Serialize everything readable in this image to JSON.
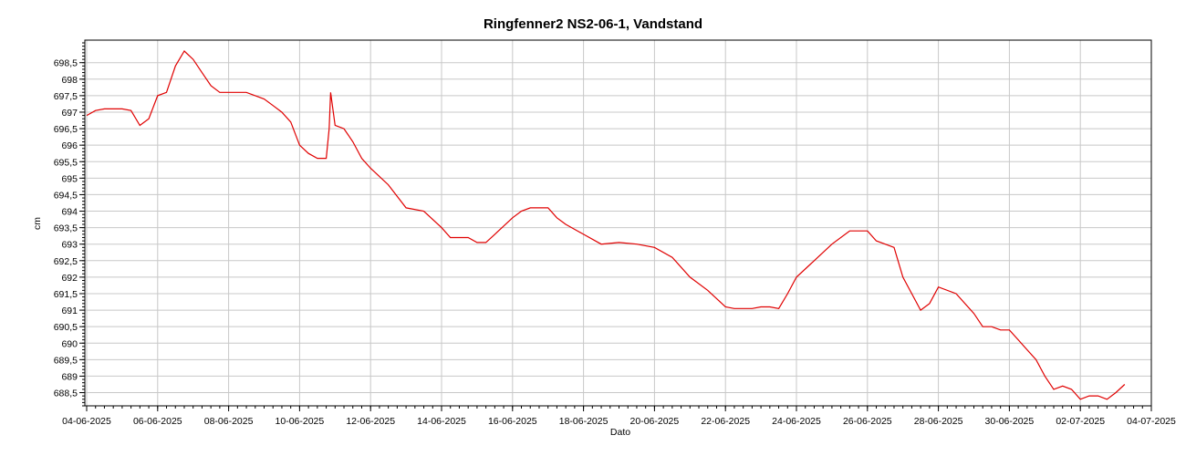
{
  "chart_data": {
    "type": "line",
    "title": "Ringfenner2 NS2-06-1, Vandstand",
    "xlabel": "Dato",
    "ylabel": "cm",
    "x_ticks": [
      "04-06-2025",
      "06-06-2025",
      "08-06-2025",
      "10-06-2025",
      "12-06-2025",
      "14-06-2025",
      "16-06-2025",
      "18-06-2025",
      "20-06-2025",
      "22-06-2025",
      "24-06-2025",
      "26-06-2025",
      "28-06-2025",
      "30-06-2025",
      "02-07-2025",
      "04-07-2025"
    ],
    "y_ticks": [
      "688,5",
      "689",
      "689,5",
      "690",
      "690,5",
      "691",
      "691,5",
      "692",
      "692,5",
      "693",
      "693,5",
      "694",
      "694,5",
      "695",
      "695,5",
      "696",
      "696,5",
      "697",
      "697,5",
      "698",
      "698,5"
    ],
    "xlim": [
      "2025-06-04",
      "2025-07-04"
    ],
    "ylim": [
      688.1,
      699.1
    ],
    "grid": true,
    "line_color": "#e00000",
    "series": [
      {
        "x": [
          "2025-06-04 00:00",
          "2025-06-04 06:00",
          "2025-06-04 12:00",
          "2025-06-04 18:00",
          "2025-06-05 00:00",
          "2025-06-05 06:00",
          "2025-06-05 12:00",
          "2025-06-05 18:00",
          "2025-06-06 00:00",
          "2025-06-06 06:00",
          "2025-06-06 12:00",
          "2025-06-06 18:00",
          "2025-06-07 00:00",
          "2025-06-07 06:00",
          "2025-06-07 12:00",
          "2025-06-07 18:00",
          "2025-06-08 00:00",
          "2025-06-08 12:00",
          "2025-06-09 00:00",
          "2025-06-09 06:00",
          "2025-06-09 12:00",
          "2025-06-09 18:00",
          "2025-06-10 00:00",
          "2025-06-10 06:00",
          "2025-06-10 12:00",
          "2025-06-10 18:00",
          "2025-06-10 20:00",
          "2025-06-10 21:00",
          "2025-06-11 00:00",
          "2025-06-11 06:00",
          "2025-06-11 12:00",
          "2025-06-11 18:00",
          "2025-06-12 00:00",
          "2025-06-12 12:00",
          "2025-06-13 00:00",
          "2025-06-13 12:00",
          "2025-06-14 00:00",
          "2025-06-14 06:00",
          "2025-06-14 12:00",
          "2025-06-14 18:00",
          "2025-06-15 00:00",
          "2025-06-15 06:00",
          "2025-06-15 12:00",
          "2025-06-16 00:00",
          "2025-06-16 06:00",
          "2025-06-16 12:00",
          "2025-06-16 18:00",
          "2025-06-17 00:00",
          "2025-06-17 06:00",
          "2025-06-17 12:00",
          "2025-06-18 00:00",
          "2025-06-18 12:00",
          "2025-06-19 00:00",
          "2025-06-19 12:00",
          "2025-06-20 00:00",
          "2025-06-20 12:00",
          "2025-06-21 00:00",
          "2025-06-21 12:00",
          "2025-06-22 00:00",
          "2025-06-22 06:00",
          "2025-06-22 12:00",
          "2025-06-22 18:00",
          "2025-06-23 00:00",
          "2025-06-23 06:00",
          "2025-06-23 12:00",
          "2025-06-23 18:00",
          "2025-06-24 00:00",
          "2025-06-24 12:00",
          "2025-06-25 00:00",
          "2025-06-25 12:00",
          "2025-06-26 00:00",
          "2025-06-26 06:00",
          "2025-06-26 12:00",
          "2025-06-26 18:00",
          "2025-06-27 00:00",
          "2025-06-27 06:00",
          "2025-06-27 12:00",
          "2025-06-27 18:00",
          "2025-06-28 00:00",
          "2025-06-28 12:00",
          "2025-06-29 00:00",
          "2025-06-29 06:00",
          "2025-06-29 12:00",
          "2025-06-29 18:00",
          "2025-06-30 00:00",
          "2025-06-30 06:00",
          "2025-06-30 12:00",
          "2025-06-30 18:00",
          "2025-07-01 00:00",
          "2025-07-01 06:00",
          "2025-07-01 12:00",
          "2025-07-01 18:00",
          "2025-07-02 00:00",
          "2025-07-02 06:00",
          "2025-07-02 12:00",
          "2025-07-02 18:00",
          "2025-07-03 00:00",
          "2025-07-03 06:00"
        ],
        "y": [
          696.9,
          697.05,
          697.1,
          697.1,
          697.1,
          697.05,
          696.6,
          696.8,
          697.5,
          697.6,
          698.4,
          698.85,
          698.6,
          698.2,
          697.8,
          697.6,
          697.6,
          697.6,
          697.4,
          697.2,
          697.0,
          696.7,
          696.0,
          695.75,
          695.6,
          695.6,
          696.5,
          697.6,
          696.6,
          696.5,
          696.1,
          695.6,
          695.3,
          694.8,
          694.1,
          694.0,
          693.5,
          693.2,
          693.2,
          693.2,
          693.05,
          693.05,
          693.3,
          693.8,
          694.0,
          694.1,
          694.1,
          694.1,
          693.8,
          693.6,
          693.3,
          693.0,
          693.05,
          693.0,
          692.9,
          692.6,
          692.0,
          691.6,
          691.1,
          691.05,
          691.05,
          691.05,
          691.1,
          691.1,
          691.05,
          691.5,
          692.0,
          692.5,
          693.0,
          693.4,
          693.4,
          693.1,
          693.0,
          692.9,
          692.0,
          691.5,
          691.0,
          691.2,
          691.7,
          691.5,
          690.9,
          690.5,
          690.5,
          690.4,
          690.4,
          690.1,
          689.8,
          689.5,
          689.0,
          688.6,
          688.7,
          688.6,
          688.3,
          688.4,
          688.4,
          688.3,
          688.5,
          688.75
        ]
      }
    ]
  }
}
